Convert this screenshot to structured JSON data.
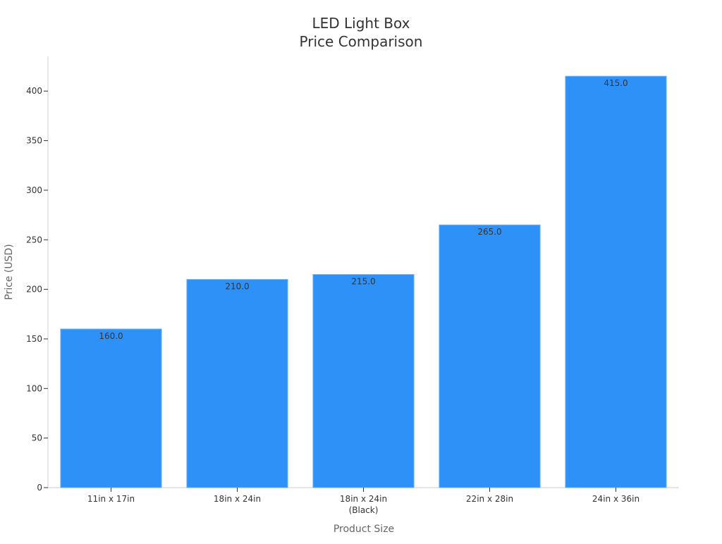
{
  "chart_data": {
    "type": "bar",
    "title_lines": [
      "LED Light Box",
      "Price Comparison"
    ],
    "xlabel": "Product Size",
    "ylabel": "Price (USD)",
    "categories": [
      [
        "11in x 17in"
      ],
      [
        "18in x 24in"
      ],
      [
        "18in x 24in",
        "(Black)"
      ],
      [
        "22in x 28in"
      ],
      [
        "24in x 36in"
      ]
    ],
    "values": [
      160.0,
      210.0,
      215.0,
      265.0,
      415.0
    ],
    "data_labels": [
      "160.0",
      "210.0",
      "215.0",
      "265.0",
      "415.0"
    ],
    "ylim": [
      0,
      435
    ],
    "yticks": [
      0,
      50,
      100,
      150,
      200,
      250,
      300,
      350,
      400
    ],
    "grid": false,
    "legend": "none",
    "colors": {
      "bar": "#2E91F8",
      "text": "#333333",
      "axis_label": "#666666",
      "axis_line": "#CCCCCC"
    }
  }
}
